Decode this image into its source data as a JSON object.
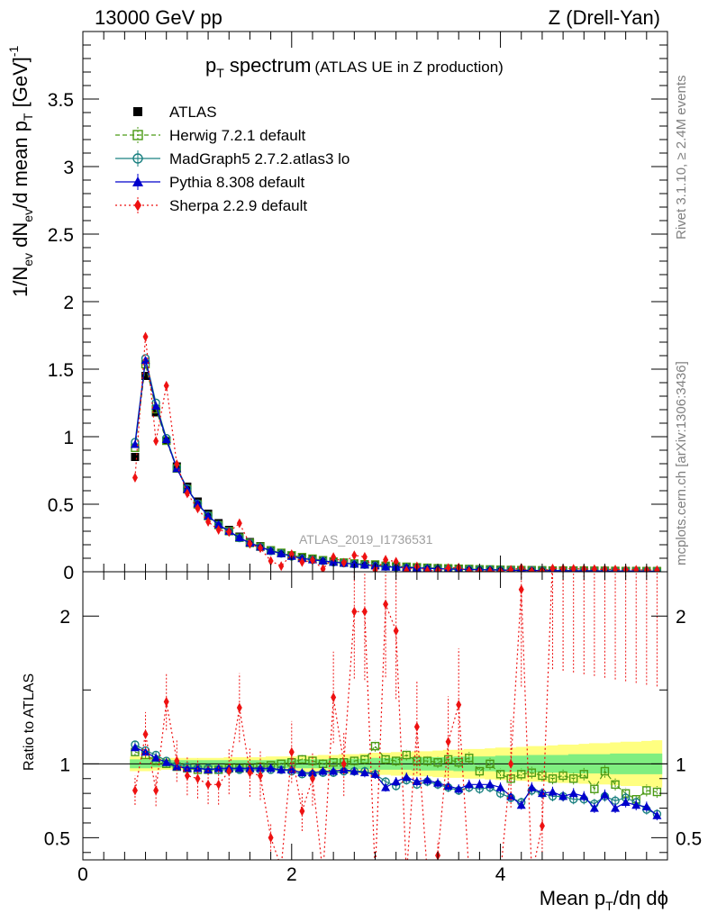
{
  "header": {
    "left": "13000 GeV pp",
    "right": "Z (Drell-Yan)"
  },
  "side_text": {
    "top": "Rivet 3.1.10, ≥ 2.4M events",
    "bottom": "mcplots.cern.ch [arXiv:1306:3436]"
  },
  "chart_data": {
    "type": "line",
    "title": {
      "main": "p",
      "sub": "T",
      "rest": " spectrum",
      "note": "(ATLAS UE in Z production)"
    },
    "watermark": "ATLAS_2019_I1736531",
    "xlabel": {
      "a": "Mean p",
      "sub": "T",
      "b": "/dη dϕ"
    },
    "ylabel_main": {
      "a": "1/N",
      "s1": "ev",
      "b": " dN",
      "s2": "ev",
      "c": "/d mean p",
      "s3": "T",
      "d": " [GeV]",
      "sup": "-1"
    },
    "ylabel_ratio": "Ratio to ATLAS",
    "xlim": [
      0,
      5.6
    ],
    "ylim_main": [
      0,
      4.0
    ],
    "ylim_ratio": [
      0.35,
      2.3
    ],
    "x_ticks": [
      "0",
      "2",
      "4"
    ],
    "x_tick_values": [
      0,
      2,
      4
    ],
    "y_ticks_main": [
      "0",
      "0.5",
      "1",
      "1.5",
      "2",
      "2.5",
      "3",
      "3.5"
    ],
    "y_tick_values_main": [
      0,
      0.5,
      1,
      1.5,
      2,
      2.5,
      3,
      3.5
    ],
    "y_ticks_ratio": [
      "0.5",
      "1",
      "2"
    ],
    "y_tick_values_ratio": [
      0.5,
      1,
      2
    ],
    "x": [
      0.5,
      0.6,
      0.7,
      0.8,
      0.9,
      1.0,
      1.1,
      1.2,
      1.3,
      1.4,
      1.5,
      1.6,
      1.7,
      1.8,
      1.9,
      2.0,
      2.1,
      2.2,
      2.3,
      2.4,
      2.5,
      2.6,
      2.7,
      2.8,
      2.9,
      3.0,
      3.1,
      3.2,
      3.3,
      3.4,
      3.5,
      3.6,
      3.7,
      3.8,
      3.9,
      4.0,
      4.1,
      4.2,
      4.3,
      4.4,
      4.5,
      4.6,
      4.7,
      4.8,
      4.9,
      5.0,
      5.1,
      5.2,
      5.3,
      5.4,
      5.5
    ],
    "atlas": [
      0.85,
      1.45,
      1.18,
      0.97,
      0.78,
      0.63,
      0.52,
      0.43,
      0.36,
      0.31,
      0.26,
      0.22,
      0.19,
      0.16,
      0.14,
      0.12,
      0.105,
      0.095,
      0.085,
      0.075,
      0.067,
      0.06,
      0.054,
      0.048,
      0.043,
      0.039,
      0.035,
      0.032,
      0.029,
      0.026,
      0.024,
      0.022,
      0.02,
      0.018,
      0.017,
      0.015,
      0.014,
      0.013,
      0.012,
      0.011,
      0.01,
      0.0095,
      0.009,
      0.0085,
      0.008,
      0.0075,
      0.007,
      0.0065,
      0.006,
      0.0055,
      0.005
    ],
    "band_inner": [
      0.03,
      0.03,
      0.025,
      0.025,
      0.025,
      0.025,
      0.025,
      0.025,
      0.025,
      0.025,
      0.025,
      0.025,
      0.025,
      0.025,
      0.03,
      0.03,
      0.03,
      0.03,
      0.03,
      0.035,
      0.035,
      0.035,
      0.035,
      0.04,
      0.04,
      0.04,
      0.04,
      0.045,
      0.045,
      0.045,
      0.045,
      0.05,
      0.05,
      0.05,
      0.05,
      0.055,
      0.055,
      0.055,
      0.06,
      0.06,
      0.06,
      0.06,
      0.065,
      0.065,
      0.065,
      0.065,
      0.07,
      0.07,
      0.07,
      0.07,
      0.07
    ],
    "band_outer": [
      0.05,
      0.05,
      0.045,
      0.04,
      0.04,
      0.04,
      0.04,
      0.04,
      0.04,
      0.045,
      0.045,
      0.045,
      0.045,
      0.05,
      0.05,
      0.05,
      0.055,
      0.055,
      0.06,
      0.06,
      0.065,
      0.065,
      0.07,
      0.075,
      0.075,
      0.08,
      0.08,
      0.085,
      0.085,
      0.09,
      0.095,
      0.095,
      0.1,
      0.1,
      0.105,
      0.11,
      0.11,
      0.115,
      0.12,
      0.12,
      0.125,
      0.13,
      0.13,
      0.135,
      0.14,
      0.14,
      0.145,
      0.15,
      0.15,
      0.155,
      0.16
    ],
    "series": [
      {
        "name": "ATLAS",
        "color": "#000000",
        "marker": "square-filled",
        "dash": "none"
      },
      {
        "name": "Herwig 7.2.1 default",
        "color": "#4a9a14",
        "marker": "square-open",
        "dash": "5,3",
        "ratio": [
          1.08,
          1.06,
          1.02,
          1.0,
          0.98,
          0.97,
          0.96,
          0.96,
          0.96,
          0.97,
          0.97,
          0.97,
          0.98,
          0.99,
          1.0,
          1.01,
          1.03,
          1.02,
          1.0,
          1.01,
          1.01,
          1.02,
          1.03,
          1.12,
          1.03,
          1.02,
          1.06,
          1.02,
          1.02,
          1.01,
          1.03,
          1.01,
          1.04,
          0.95,
          1.0,
          0.93,
          0.9,
          0.93,
          0.94,
          0.92,
          0.9,
          0.92,
          0.9,
          0.93,
          0.83,
          0.95,
          0.86,
          0.8,
          0.76,
          0.82,
          0.81
        ]
      },
      {
        "name": "MadGraph5 2.7.2.atlas3 lo",
        "color": "#1a8080",
        "marker": "circle-open",
        "dash": "none",
        "ratio": [
          1.13,
          1.09,
          1.06,
          1.02,
          0.99,
          0.98,
          0.97,
          0.97,
          0.96,
          0.96,
          0.96,
          0.96,
          0.96,
          0.96,
          0.96,
          0.95,
          0.93,
          0.93,
          0.94,
          0.94,
          0.95,
          0.95,
          0.95,
          0.93,
          0.88,
          0.85,
          0.89,
          0.86,
          0.88,
          0.86,
          0.84,
          0.82,
          0.84,
          0.83,
          0.84,
          0.8,
          0.77,
          0.74,
          0.82,
          0.8,
          0.78,
          0.78,
          0.76,
          0.76,
          0.73,
          0.78,
          0.75,
          0.77,
          0.74,
          0.69,
          0.66
        ]
      },
      {
        "name": "Pythia 8.308 default",
        "color": "#0000cc",
        "marker": "triangle-filled",
        "dash": "none",
        "ratio": [
          1.11,
          1.08,
          1.04,
          1.01,
          0.98,
          0.97,
          0.97,
          0.96,
          0.97,
          0.97,
          0.97,
          0.97,
          0.97,
          0.97,
          0.96,
          0.96,
          0.94,
          0.94,
          0.95,
          0.95,
          0.96,
          0.95,
          0.94,
          0.93,
          0.84,
          0.88,
          0.91,
          0.88,
          0.89,
          0.87,
          0.85,
          0.83,
          0.86,
          0.86,
          0.86,
          0.84,
          0.78,
          0.72,
          0.84,
          0.8,
          0.81,
          0.78,
          0.8,
          0.78,
          0.7,
          0.79,
          0.7,
          0.74,
          0.72,
          0.71,
          0.65
        ]
      },
      {
        "name": "Sherpa 2.2.9 default",
        "color": "#ee1111",
        "marker": "diamond-filled",
        "dash": "2,3",
        "ratio": [
          0.82,
          1.2,
          0.82,
          1.42,
          1.02,
          0.92,
          0.9,
          0.86,
          0.86,
          0.95,
          1.38,
          0.94,
          0.92,
          0.5,
          0.3,
          1.08,
          0.68,
          0.9,
          0.25,
          1.45,
          1.0,
          2.03,
          2.03,
          0.25,
          2.08,
          1.9,
          0.25,
          1.25,
          0.25,
          0.38,
          1.15,
          1.4,
          0.25,
          0.25,
          0.25,
          0.25,
          1.0,
          2.18,
          0.25,
          0.58,
          2.4,
          2.4,
          2.4,
          2.4,
          2.4,
          2.4,
          2.4,
          2.4,
          2.4,
          2.4,
          2.4
        ]
      }
    ],
    "legend_position": "top-left",
    "grid": false
  }
}
